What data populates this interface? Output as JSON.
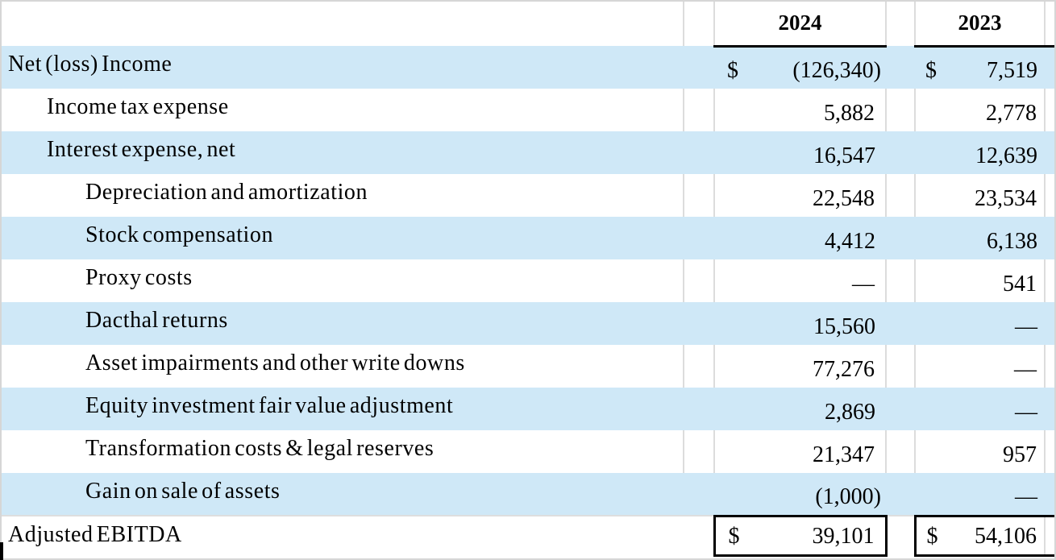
{
  "table": {
    "header": {
      "col_2024": "2024",
      "col_2023": "2023"
    },
    "rows": [
      {
        "label": "Net (loss) Income",
        "indent": 0,
        "currency_2024": "$",
        "v2024": "(126,340)",
        "currency_2023": "$",
        "v2023": "7,519"
      },
      {
        "label": "Income tax expense",
        "indent": 1,
        "v2024": "5,882",
        "v2023": "2,778"
      },
      {
        "label": "Interest expense, net",
        "indent": 1,
        "v2024": "16,547",
        "v2023": "12,639"
      },
      {
        "label": "Depreciation and amortization",
        "indent": 2,
        "v2024": "22,548",
        "v2023": "23,534"
      },
      {
        "label": "Stock compensation",
        "indent": 2,
        "v2024": "4,412",
        "v2023": "6,138"
      },
      {
        "label": "Proxy costs",
        "indent": 2,
        "v2024": "—",
        "v2023": "541"
      },
      {
        "label": "Dacthal returns",
        "indent": 2,
        "v2024": "15,560",
        "v2023": "—"
      },
      {
        "label": "Asset impairments and other write downs",
        "indent": 2,
        "v2024": "77,276",
        "v2023": "—"
      },
      {
        "label": "Equity investment fair value adjustment",
        "indent": 2,
        "v2024": "2,869",
        "v2023": "—"
      },
      {
        "label": "Transformation costs & legal reserves",
        "indent": 2,
        "v2024": "21,347",
        "v2023": "957"
      },
      {
        "label": "Gain on sale of assets",
        "indent": 2,
        "v2024": "(1,000)",
        "v2023": "—"
      },
      {
        "label": "Adjusted EBITDA",
        "indent": 0,
        "currency_2024": "$",
        "v2024": "39,101",
        "currency_2023": "$",
        "v2023": "54,106"
      }
    ],
    "colors": {
      "row_highlight": "#cfe8f7",
      "gridline": "#dcdcdc",
      "total_rule": "#000000"
    }
  }
}
